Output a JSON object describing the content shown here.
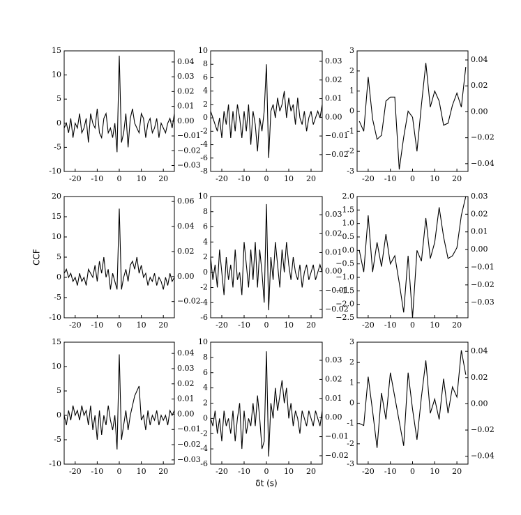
{
  "chart_data": [
    {
      "type": "line",
      "color": "#000000",
      "xlim": [
        -25,
        25
      ],
      "xticks": [
        -20,
        -10,
        0,
        10,
        20
      ],
      "ylim": [
        -10,
        15
      ],
      "yticks": [
        -10,
        -5,
        0,
        5,
        10,
        15
      ],
      "y2lim": [
        -0.034,
        0.0475
      ],
      "y2ticks": [
        {
          "value": -0.03,
          "label": "−0.03"
        },
        {
          "value": -0.02,
          "label": "−0.02"
        },
        {
          "value": -0.01,
          "label": "−0.01"
        },
        {
          "value": 0,
          "label": "0.00"
        },
        {
          "value": 0.01,
          "label": "0.01"
        },
        {
          "value": 0.02,
          "label": "0.02"
        },
        {
          "value": 0.03,
          "label": "0.03"
        },
        {
          "value": 0.04,
          "label": "0.04"
        }
      ],
      "x": [
        -25,
        -24,
        -23,
        -22,
        -21,
        -20,
        -19,
        -18,
        -17,
        -16,
        -15,
        -14,
        -13,
        -12,
        -11,
        -10,
        -9,
        -8,
        -7,
        -6,
        -5,
        -4,
        -3,
        -2,
        -1,
        0,
        1,
        2,
        3,
        4,
        5,
        6,
        7,
        8,
        9,
        10,
        11,
        12,
        13,
        14,
        15,
        16,
        17,
        18,
        19,
        20,
        21,
        22,
        23,
        24,
        25
      ],
      "values": [
        -1,
        0,
        -2,
        1,
        -3,
        0,
        -1,
        2,
        -2,
        -1,
        1,
        -4,
        2,
        0,
        -1,
        3,
        -2,
        -3,
        1,
        2,
        -2,
        -1,
        -3,
        0,
        -6,
        14,
        -4,
        -2,
        2,
        -5,
        1,
        3,
        0,
        -1,
        -2,
        2,
        1,
        -3,
        0,
        1,
        -2,
        -1,
        1,
        -3,
        0,
        -1,
        -2,
        0,
        1,
        -1,
        2
      ]
    },
    {
      "type": "line",
      "color": "#000000",
      "xlim": [
        -25,
        25
      ],
      "xticks": [
        -20,
        -10,
        0,
        10,
        20
      ],
      "ylim": [
        -8,
        10
      ],
      "yticks": [
        -8,
        -6,
        -4,
        -2,
        0,
        2,
        4,
        6,
        8,
        10
      ],
      "y2lim": [
        -0.029,
        0.0356
      ],
      "y2ticks": [
        {
          "value": -0.02,
          "label": "−0.02"
        },
        {
          "value": -0.01,
          "label": "−0.01"
        },
        {
          "value": 0,
          "label": "0.00"
        },
        {
          "value": 0.01,
          "label": "0.01"
        },
        {
          "value": 0.02,
          "label": "0.02"
        },
        {
          "value": 0.03,
          "label": "0.03"
        }
      ],
      "x": [
        -25,
        -24,
        -23,
        -22,
        -21,
        -20,
        -19,
        -18,
        -17,
        -16,
        -15,
        -14,
        -13,
        -12,
        -11,
        -10,
        -9,
        -8,
        -7,
        -6,
        -5,
        -4,
        -3,
        -2,
        -1,
        0,
        1,
        2,
        3,
        4,
        5,
        6,
        7,
        8,
        9,
        10,
        11,
        12,
        13,
        14,
        15,
        16,
        17,
        18,
        19,
        20,
        21,
        22,
        23,
        24,
        25
      ],
      "values": [
        1,
        0,
        -1,
        -2,
        0,
        -3,
        1,
        -1,
        2,
        -3,
        1,
        -2,
        2,
        0,
        -3,
        1,
        -2,
        2,
        -4,
        1,
        -1,
        -5,
        0,
        -2,
        1,
        8,
        -6,
        1,
        2,
        0,
        3,
        1,
        2,
        4,
        0,
        3,
        1,
        2,
        -1,
        3,
        0,
        -1,
        1,
        -2,
        0,
        1,
        -1,
        0,
        1,
        0,
        2
      ]
    },
    {
      "type": "line",
      "color": "#000000",
      "xlim": [
        -25,
        25
      ],
      "xticks": [
        -20,
        -10,
        0,
        10,
        20
      ],
      "ylim": [
        -3,
        3
      ],
      "yticks": [
        -3,
        -2,
        -1,
        0,
        1,
        2,
        3
      ],
      "y2lim": [
        -0.046,
        0.047
      ],
      "y2ticks": [
        {
          "value": -0.04,
          "label": "−0.04"
        },
        {
          "value": -0.02,
          "label": "−0.02"
        },
        {
          "value": 0,
          "label": "0.00"
        },
        {
          "value": 0.02,
          "label": "0.02"
        },
        {
          "value": 0.04,
          "label": "0.04"
        }
      ],
      "x": [
        -24,
        -22,
        -20,
        -18,
        -16,
        -14,
        -12,
        -10,
        -8,
        -6,
        -4,
        -2,
        0,
        2,
        4,
        6,
        8,
        10,
        12,
        14,
        16,
        18,
        20,
        22,
        24
      ],
      "values": [
        -0.5,
        -1,
        1.7,
        -0.4,
        -1.4,
        -1.2,
        0.5,
        0.7,
        0.7,
        -2.9,
        -1.3,
        0,
        -0.3,
        -2,
        0.3,
        2.4,
        0.2,
        1,
        0.5,
        -0.7,
        -0.6,
        0.3,
        0.9,
        0.2,
        2.2
      ]
    },
    {
      "type": "line",
      "color": "#000000",
      "xlim": [
        -25,
        25
      ],
      "xticks": [
        -20,
        -10,
        0,
        10,
        20
      ],
      "ylabel": "CCF",
      "ylim": [
        -10,
        20
      ],
      "yticks": [
        -10,
        -5,
        0,
        5,
        10,
        15,
        20
      ],
      "y2lim": [
        -0.033,
        0.064
      ],
      "y2ticks": [
        {
          "value": -0.02,
          "label": "−0.02"
        },
        {
          "value": 0,
          "label": "0.00"
        },
        {
          "value": 0.02,
          "label": "0.02"
        },
        {
          "value": 0.04,
          "label": "0.04"
        },
        {
          "value": 0.06,
          "label": "0.06"
        }
      ],
      "x": [
        -25,
        -24,
        -23,
        -22,
        -21,
        -20,
        -19,
        -18,
        -17,
        -16,
        -15,
        -14,
        -13,
        -12,
        -11,
        -10,
        -9,
        -8,
        -7,
        -6,
        -5,
        -4,
        -3,
        -2,
        -1,
        0,
        1,
        2,
        3,
        4,
        5,
        6,
        7,
        8,
        9,
        10,
        11,
        12,
        13,
        14,
        15,
        16,
        17,
        18,
        19,
        20,
        21,
        22,
        23,
        24,
        25
      ],
      "values": [
        1,
        2,
        0,
        1,
        -1,
        0,
        -2,
        1,
        -1,
        0,
        -2,
        2,
        1,
        0,
        3,
        -1,
        4,
        1,
        5,
        0,
        2,
        -3,
        1,
        -1,
        -3,
        17,
        -3,
        0,
        2,
        -1,
        3,
        4,
        2,
        5,
        1,
        3,
        0,
        1,
        -2,
        0,
        -1,
        1,
        -2,
        0,
        -1,
        -3,
        0,
        -2,
        1,
        -1,
        0
      ]
    },
    {
      "type": "line",
      "color": "#000000",
      "xlim": [
        -25,
        25
      ],
      "xticks": [
        -20,
        -10,
        0,
        10,
        20
      ],
      "ylim": [
        -6,
        10
      ],
      "yticks": [
        -6,
        -4,
        -2,
        0,
        2,
        4,
        6,
        8,
        10
      ],
      "y2lim": [
        -0.0244,
        0.0396
      ],
      "y2ticks": [
        {
          "value": -0.02,
          "label": "−0.02"
        },
        {
          "value": -0.01,
          "label": "−0.01"
        },
        {
          "value": 0,
          "label": "0.00"
        },
        {
          "value": 0.01,
          "label": "0.01"
        },
        {
          "value": 0.02,
          "label": "0.02"
        },
        {
          "value": 0.03,
          "label": "0.03"
        }
      ],
      "x": [
        -25,
        -24,
        -23,
        -22,
        -21,
        -20,
        -19,
        -18,
        -17,
        -16,
        -15,
        -14,
        -13,
        -12,
        -11,
        -10,
        -9,
        -8,
        -7,
        -6,
        -5,
        -4,
        -3,
        -2,
        -1,
        0,
        1,
        2,
        3,
        4,
        5,
        6,
        7,
        8,
        9,
        10,
        11,
        12,
        13,
        14,
        15,
        16,
        17,
        18,
        19,
        20,
        21,
        22,
        23,
        24,
        25
      ],
      "values": [
        2,
        -1,
        1,
        -2,
        3,
        0,
        -3,
        2,
        -1,
        1,
        -2,
        3,
        -1,
        0,
        -3,
        4,
        1,
        -2,
        3,
        -1,
        4,
        -2,
        3,
        0,
        -4,
        9,
        -5,
        2,
        -1,
        4,
        1,
        -2,
        3,
        0,
        4,
        1,
        -1,
        2,
        0,
        -1,
        1,
        -2,
        0,
        1,
        -1,
        0,
        1,
        -1,
        0,
        1,
        0
      ]
    },
    {
      "type": "line",
      "color": "#000000",
      "xlim": [
        -25,
        25
      ],
      "xticks": [
        -20,
        -10,
        0,
        10,
        20
      ],
      "ylim": [
        -2.5,
        2.0
      ],
      "yticks": [
        {
          "value": -2.5,
          "label": "−2.5"
        },
        {
          "value": -2,
          "label": "−2.0"
        },
        {
          "value": -1.5,
          "label": "−1.5"
        },
        {
          "value": -1,
          "label": "−1.0"
        },
        {
          "value": -0.5,
          "label": "−0.5"
        },
        {
          "value": 0,
          "label": "0.0"
        },
        {
          "value": 0.5,
          "label": "0.5"
        },
        {
          "value": 1,
          "label": "1.0"
        },
        {
          "value": 1.5,
          "label": "1.5"
        },
        {
          "value": 2,
          "label": "2.0"
        }
      ],
      "y2lim": [
        -0.0386,
        0.03
      ],
      "y2ticks": [
        {
          "value": -0.03,
          "label": "−0.03"
        },
        {
          "value": -0.02,
          "label": "−0.02"
        },
        {
          "value": -0.01,
          "label": "−0.01"
        },
        {
          "value": 0,
          "label": "0.00"
        },
        {
          "value": 0.01,
          "label": "0.01"
        },
        {
          "value": 0.02,
          "label": "0.02"
        },
        {
          "value": 0.03,
          "label": "0.03"
        }
      ],
      "x": [
        -24,
        -22,
        -20,
        -18,
        -16,
        -14,
        -12,
        -10,
        -8,
        -6,
        -4,
        -2,
        0,
        2,
        4,
        6,
        8,
        10,
        12,
        14,
        16,
        18,
        20,
        22,
        24
      ],
      "values": [
        0,
        -0.8,
        1.3,
        -0.8,
        0.3,
        -0.6,
        0.6,
        -0.5,
        -0.2,
        -1.2,
        -2.3,
        -0.2,
        -2.5,
        0,
        -0.4,
        1.2,
        -0.3,
        0.3,
        1.6,
        0.5,
        -0.3,
        -0.2,
        0.1,
        1.3,
        2.0
      ]
    },
    {
      "type": "line",
      "color": "#000000",
      "xlim": [
        -25,
        25
      ],
      "xticks": [
        -20,
        -10,
        0,
        10,
        20
      ],
      "ylim": [
        -10,
        15
      ],
      "yticks": [
        -10,
        -5,
        0,
        5,
        10,
        15
      ],
      "y2lim": [
        -0.0328,
        0.0474
      ],
      "y2ticks": [
        {
          "value": -0.03,
          "label": "−0.03"
        },
        {
          "value": -0.02,
          "label": "−0.02"
        },
        {
          "value": -0.01,
          "label": "−0.01"
        },
        {
          "value": 0,
          "label": "0.00"
        },
        {
          "value": 0.01,
          "label": "0.01"
        },
        {
          "value": 0.02,
          "label": "0.02"
        },
        {
          "value": 0.03,
          "label": "0.03"
        },
        {
          "value": 0.04,
          "label": "0.04"
        }
      ],
      "x": [
        -25,
        -24,
        -23,
        -22,
        -21,
        -20,
        -19,
        -18,
        -17,
        -16,
        -15,
        -14,
        -13,
        -12,
        -11,
        -10,
        -9,
        -8,
        -7,
        -6,
        -5,
        -4,
        -3,
        -2,
        -1,
        0,
        1,
        2,
        3,
        4,
        5,
        6,
        7,
        8,
        9,
        10,
        11,
        12,
        13,
        14,
        15,
        16,
        17,
        18,
        19,
        20,
        21,
        22,
        23,
        24,
        25
      ],
      "values": [
        0,
        -2,
        1,
        -1,
        2,
        0,
        1,
        -1,
        2,
        0,
        1,
        -2,
        2,
        -3,
        0,
        -5,
        1,
        -4,
        0,
        -2,
        2,
        -1,
        -3,
        0,
        -7,
        12.5,
        -5,
        -2,
        1,
        -3,
        0,
        2,
        4,
        5,
        6,
        -1,
        0,
        -3,
        1,
        -2,
        0,
        -1,
        1,
        -2,
        0,
        -1,
        0,
        -2,
        1,
        0,
        1
      ]
    },
    {
      "type": "line",
      "color": "#000000",
      "xlim": [
        -25,
        25
      ],
      "xticks": [
        -20,
        -10,
        0,
        10,
        20
      ],
      "xlabel": "δt (s)",
      "ylim": [
        -6,
        10
      ],
      "yticks": [
        -6,
        -4,
        -2,
        0,
        2,
        4,
        6,
        8,
        10
      ],
      "y2lim": [
        -0.0244,
        0.0395
      ],
      "y2ticks": [
        {
          "value": -0.02,
          "label": "−0.02"
        },
        {
          "value": -0.01,
          "label": "−0.01"
        },
        {
          "value": 0,
          "label": "0.00"
        },
        {
          "value": 0.01,
          "label": "0.01"
        },
        {
          "value": 0.02,
          "label": "0.02"
        },
        {
          "value": 0.03,
          "label": "0.03"
        }
      ],
      "x": [
        -25,
        -24,
        -23,
        -22,
        -21,
        -20,
        -19,
        -18,
        -17,
        -16,
        -15,
        -14,
        -13,
        -12,
        -11,
        -10,
        -9,
        -8,
        -7,
        -6,
        -5,
        -4,
        -3,
        -2,
        -1,
        0,
        1,
        2,
        3,
        4,
        5,
        6,
        7,
        8,
        9,
        10,
        11,
        12,
        13,
        14,
        15,
        16,
        17,
        18,
        19,
        20,
        21,
        22,
        23,
        24,
        25
      ],
      "values": [
        0,
        -1,
        1,
        -2,
        0,
        -3,
        1,
        -1,
        0,
        -2,
        1,
        -3,
        0,
        2,
        -4,
        1,
        -2,
        0,
        -1,
        2,
        -1,
        3,
        0,
        -4,
        -3,
        8.8,
        -5,
        2,
        0,
        4,
        1,
        3,
        5,
        2,
        4,
        0,
        2,
        -1,
        1,
        0,
        -2,
        1,
        0,
        -1,
        1,
        0,
        -1,
        1,
        0,
        -1,
        1
      ]
    },
    {
      "type": "line",
      "color": "#000000",
      "xlim": [
        -25,
        25
      ],
      "xticks": [
        -20,
        -10,
        0,
        10,
        20
      ],
      "ylim": [
        -3,
        3
      ],
      "yticks": [
        -3,
        -2,
        -1,
        0,
        1,
        2,
        3
      ],
      "y2lim": [
        -0.046,
        0.047
      ],
      "y2ticks": [
        {
          "value": -0.04,
          "label": "−0.04"
        },
        {
          "value": -0.02,
          "label": "−0.02"
        },
        {
          "value": 0,
          "label": "0.00"
        },
        {
          "value": 0.02,
          "label": "0.02"
        },
        {
          "value": 0.04,
          "label": "0.04"
        }
      ],
      "x": [
        -24,
        -22,
        -20,
        -18,
        -16,
        -14,
        -12,
        -10,
        -8,
        -6,
        -4,
        -2,
        0,
        2,
        4,
        6,
        8,
        10,
        12,
        14,
        16,
        18,
        20,
        22,
        24
      ],
      "values": [
        -1,
        -1.1,
        1.3,
        -0.4,
        -2.2,
        0.5,
        -0.8,
        1.5,
        0.3,
        -0.9,
        -2.1,
        1.5,
        -0.3,
        -1.8,
        0.3,
        2.1,
        -0.5,
        0.2,
        -0.8,
        1.2,
        -0.5,
        0.8,
        0.3,
        2.6,
        1.4
      ]
    }
  ]
}
